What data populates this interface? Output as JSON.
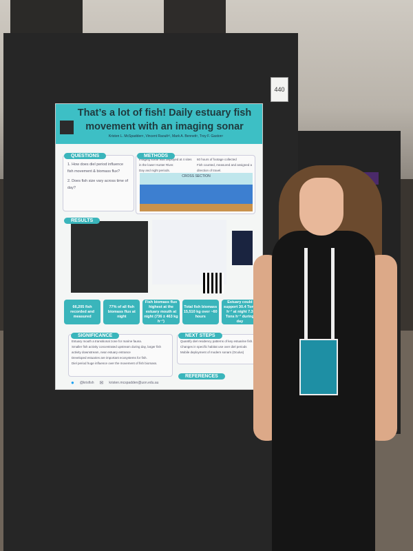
{
  "booth_number": "440",
  "poster": {
    "title": "That’s a lot of fish! Daily estuary fish movement with an imaging sonar",
    "authors": "Kristen L. McSpadden¹, Vincent Raoult¹², Mark A. Bennett¹, Troy F. Gaston¹",
    "questions": {
      "heading": "QUESTIONS",
      "items": [
        "1. How does diel period influence fish movement & biomass flux?",
        "2. Does fish size vary across time of day?"
      ]
    },
    "methods": {
      "heading": "METHODS",
      "items": [
        "Imaging sonar was deployed at 4 sites in the lower Hunter River.",
        "Day and night periods.",
        "60 hours of footage collected",
        "Fish counted, measured and assigned a direction of travel."
      ],
      "diagram_label": "CROSS SECTION"
    },
    "results": {
      "heading": "RESULTS"
    },
    "stats": [
      "66,205 fish recorded and measured",
      "77% of all fish biomass flux at night",
      "Fish biomass flux highest at the estuary mouth at night (736 ± 463 kg h⁻¹)",
      "Total fish biomass 15,510 kg over ~60 hours",
      "Estuary could support 30.4 Tons h⁻¹ at night 7.3 Tons h⁻¹ during day"
    ],
    "significance": {
      "heading": "SIGNIFICANCE",
      "items": [
        "Estuary mouth a transitional zone for marine fauna.",
        "Smaller fish activity concentrated upstream during day, larger fish activity downstream, near estuary entrance",
        "Developed estuaries are important ecosystems for fish.",
        "Diel period huge influence over the movement of fish biomass."
      ]
    },
    "next_steps": {
      "heading": "NEXT STEPS",
      "items": [
        "Quantify diel residency patterns of key estuarine fish.",
        "Changes in specific habitat use over diel periods",
        "Mobile deployment of modern sonars (Oculus)"
      ]
    },
    "references": {
      "heading": "REFERENCES"
    },
    "twitter": "@krisfish",
    "email": "kristen.mcspadden@uon.edu.au"
  }
}
